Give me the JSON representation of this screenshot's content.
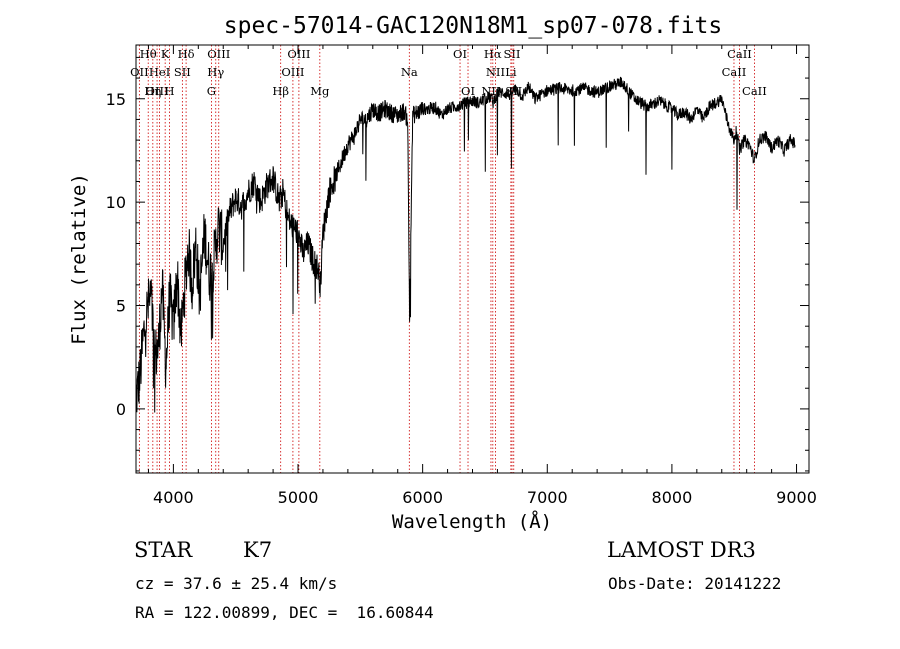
{
  "chart_data": {
    "type": "line",
    "title": "spec-57014-GAC120N18M1_sp07-078.fits",
    "xlabel": "Wavelength (Å)",
    "ylabel": "Flux (relative)",
    "xlim": [
      3700,
      9100
    ],
    "ylim": [
      -3.1,
      17.6
    ],
    "x_ticks": [
      4000,
      5000,
      6000,
      7000,
      8000,
      9000
    ],
    "y_ticks": [
      0,
      5,
      10,
      15
    ],
    "series": [
      {
        "name": "spectrum",
        "x": [
          3700,
          3730,
          3760,
          3790,
          3820,
          3850,
          3880,
          3910,
          3940,
          3970,
          4000,
          4030,
          4060,
          4090,
          4120,
          4150,
          4180,
          4210,
          4250,
          4290,
          4320,
          4360,
          4400,
          4450,
          4500,
          4550,
          4600,
          4650,
          4700,
          4750,
          4800,
          4850,
          4880,
          4920,
          4960,
          5000,
          5040,
          5080,
          5120,
          5160,
          5180,
          5200,
          5250,
          5300,
          5350,
          5400,
          5450,
          5500,
          5550,
          5600,
          5650,
          5700,
          5750,
          5800,
          5850,
          5880,
          5895,
          5920,
          5950,
          6000,
          6050,
          6100,
          6150,
          6200,
          6250,
          6300,
          6350,
          6400,
          6450,
          6500,
          6550,
          6563,
          6600,
          6650,
          6700,
          6750,
          6800,
          6850,
          6900,
          6950,
          7000,
          7100,
          7200,
          7300,
          7400,
          7500,
          7600,
          7700,
          7800,
          7900,
          8000,
          8050,
          8100,
          8150,
          8200,
          8250,
          8300,
          8350,
          8400,
          8450,
          8498,
          8520,
          8542,
          8580,
          8620,
          8662,
          8700,
          8750,
          8800,
          8850,
          8900,
          8950,
          8990
        ],
        "y": [
          0.5,
          1.5,
          3.5,
          4.8,
          5.5,
          2.5,
          3.0,
          6.0,
          2.0,
          5.5,
          4.0,
          6.5,
          3.5,
          5.8,
          7.8,
          6.0,
          8.0,
          5.5,
          8.5,
          6.5,
          7.0,
          8.8,
          8.0,
          9.5,
          10.2,
          9.8,
          10.5,
          11.0,
          10.0,
          10.8,
          11.2,
          10.0,
          10.5,
          9.2,
          8.8,
          8.5,
          7.5,
          8.0,
          7.2,
          6.8,
          6.0,
          8.5,
          10.5,
          11.2,
          12.0,
          12.8,
          13.2,
          14.0,
          14.0,
          14.5,
          14.3,
          14.5,
          14.3,
          14.2,
          14.4,
          14.0,
          4.5,
          14.2,
          14.3,
          14.5,
          14.5,
          14.6,
          14.2,
          14.5,
          14.6,
          14.7,
          14.8,
          14.9,
          14.8,
          15.0,
          15.1,
          14.8,
          15.3,
          15.3,
          15.2,
          15.5,
          15.1,
          15.6,
          15.0,
          15.2,
          15.4,
          15.5,
          15.4,
          15.5,
          15.3,
          15.6,
          15.8,
          15.0,
          14.6,
          14.9,
          14.5,
          14.2,
          14.4,
          14.0,
          14.5,
          14.0,
          14.6,
          14.8,
          15.0,
          13.8,
          13.0,
          13.5,
          12.5,
          13.0,
          12.8,
          12.0,
          13.0,
          13.2,
          12.6,
          13.0,
          12.5,
          13.0,
          12.8
        ]
      }
    ],
    "line_markers": [
      {
        "label": "Hθ",
        "wave": 3798,
        "row": 0
      },
      {
        "label": "K",
        "wave": 3934,
        "row": 0
      },
      {
        "label": "Hδ",
        "wave": 4102,
        "row": 0
      },
      {
        "label": "OIII",
        "wave": 4364,
        "row": 0
      },
      {
        "label": "OIII",
        "wave": 5007,
        "row": 0
      },
      {
        "label": "OI",
        "wave": 6300,
        "row": 0
      },
      {
        "label": "Hα",
        "wave": 6563,
        "row": 0
      },
      {
        "label": "SII",
        "wave": 6717,
        "row": 0
      },
      {
        "label": "CaII",
        "wave": 8542,
        "row": 0
      },
      {
        "label": "OII",
        "wave": 3727,
        "row": 1
      },
      {
        "label": "HeI",
        "wave": 3889,
        "row": 1
      },
      {
        "label": "SII",
        "wave": 4072,
        "row": 1
      },
      {
        "label": "Hγ",
        "wave": 4340,
        "row": 1
      },
      {
        "label": "OIII",
        "wave": 4959,
        "row": 1
      },
      {
        "label": "Na",
        "wave": 5893,
        "row": 1
      },
      {
        "label": "NII",
        "wave": 6584,
        "row": 1
      },
      {
        "label": "Li",
        "wave": 6708,
        "row": 1
      },
      {
        "label": "CaII",
        "wave": 8498,
        "row": 1
      },
      {
        "label": "OIII",
        "wave": 3869,
        "row": 2
      },
      {
        "label": "Hη",
        "wave": 3835,
        "row": 2
      },
      {
        "label": "H",
        "wave": 3969,
        "row": 2
      },
      {
        "label": "G",
        "wave": 4305,
        "row": 2
      },
      {
        "label": "Hβ",
        "wave": 4861,
        "row": 2
      },
      {
        "label": "Mg",
        "wave": 5175,
        "row": 2
      },
      {
        "label": "OI",
        "wave": 6364,
        "row": 2
      },
      {
        "label": "NII",
        "wave": 6548,
        "row": 2
      },
      {
        "label": "SII",
        "wave": 6731,
        "row": 2
      },
      {
        "label": "CaII",
        "wave": 8662,
        "row": 2
      }
    ]
  },
  "info": {
    "object_class": "STAR",
    "subclass": "K7",
    "survey": "LAMOST DR3",
    "cz": "cz = 37.6 ± 25.4 km/s",
    "obs_date": "Obs-Date: 20141222",
    "coords": "RA = 122.00899, DEC =  16.60844"
  },
  "colors": {
    "spectrum": "#000000",
    "marker": "#cc0000"
  }
}
